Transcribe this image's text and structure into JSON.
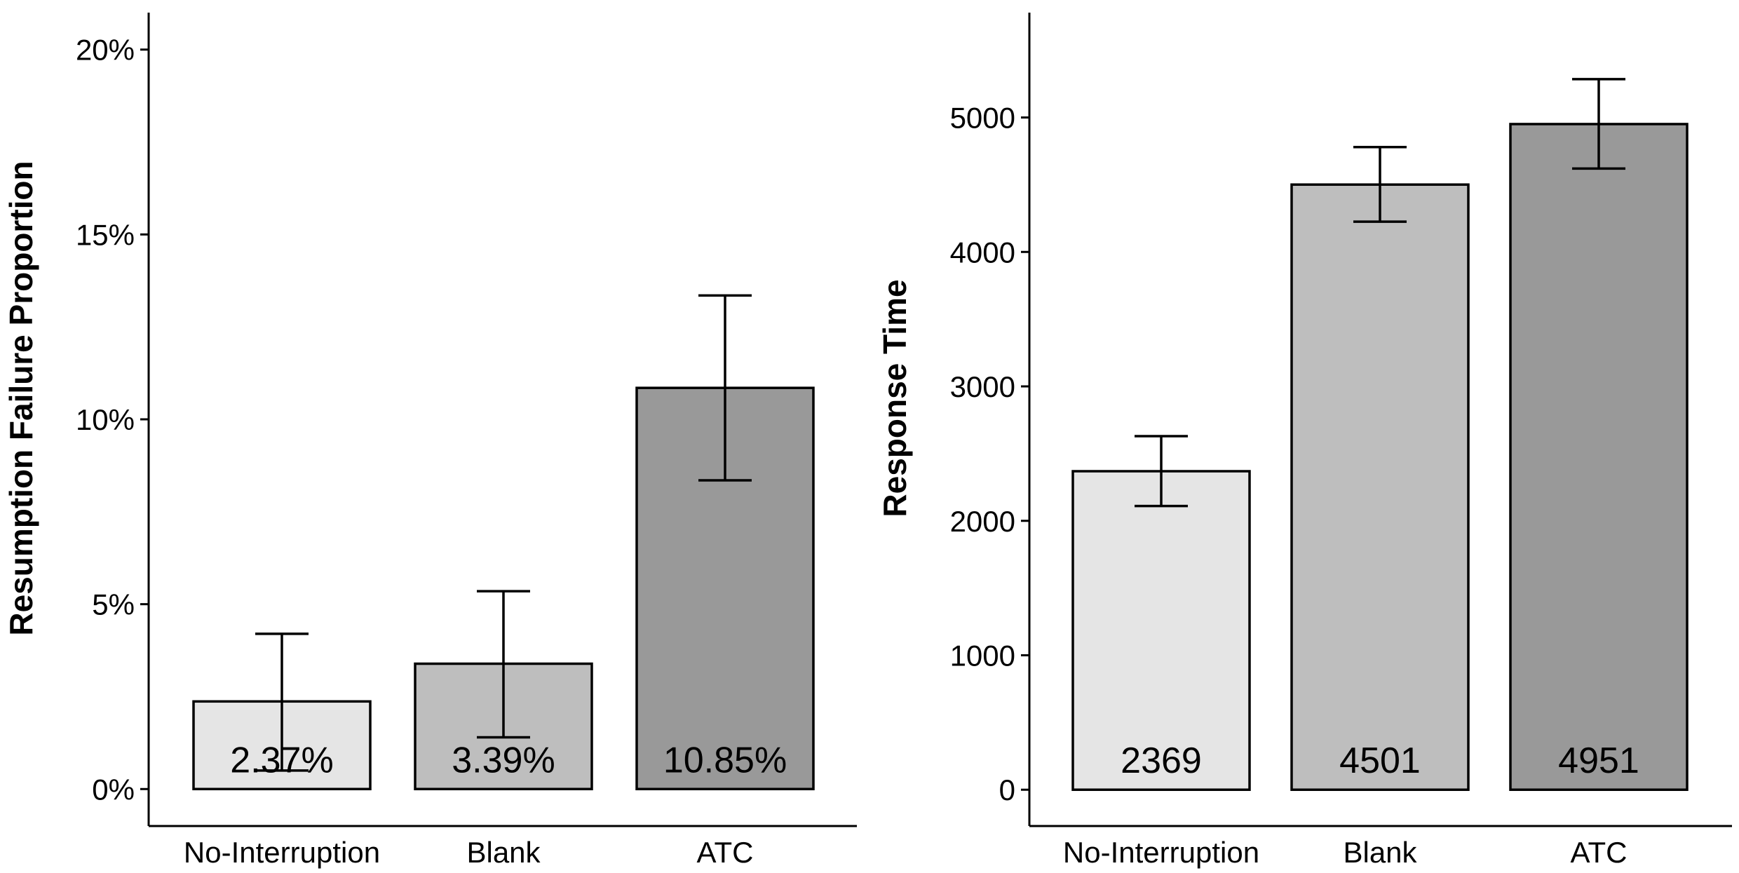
{
  "chart_data": [
    {
      "type": "bar",
      "categories": [
        "No-Interruption",
        "Blank",
        "ATC"
      ],
      "values": [
        2.37,
        3.39,
        10.85
      ],
      "error_low": [
        0.5,
        1.4,
        8.35
      ],
      "error_high": [
        4.2,
        5.35,
        13.35
      ],
      "data_labels": [
        "2.37%",
        "3.39%",
        "10.85%"
      ],
      "colors": [
        "#e5e5e5",
        "#bebebe",
        "#999999"
      ],
      "ylabel": "Resumption Failure Proportion",
      "xlabel": "",
      "ylim": [
        -1,
        21
      ],
      "yticks": [
        0,
        5,
        10,
        15,
        20
      ],
      "ytick_labels": [
        "0%",
        "5%",
        "10%",
        "15%",
        "20%"
      ],
      "grid": false
    },
    {
      "type": "bar",
      "categories": [
        "No-Interruption",
        "Blank",
        "ATC"
      ],
      "values": [
        2369,
        4501,
        4951
      ],
      "error_low": [
        2110,
        4225,
        4620
      ],
      "error_high": [
        2630,
        4780,
        5285
      ],
      "data_labels": [
        "2369",
        "4501",
        "4951"
      ],
      "colors": [
        "#e5e5e5",
        "#bebebe",
        "#999999"
      ],
      "ylabel": "Response Time",
      "xlabel": "",
      "ylim": [
        -270,
        5780
      ],
      "yticks": [
        0,
        1000,
        2000,
        3000,
        4000,
        5000
      ],
      "ytick_labels": [
        "0",
        "1000",
        "2000",
        "3000",
        "4000",
        "5000"
      ],
      "grid": false
    }
  ]
}
